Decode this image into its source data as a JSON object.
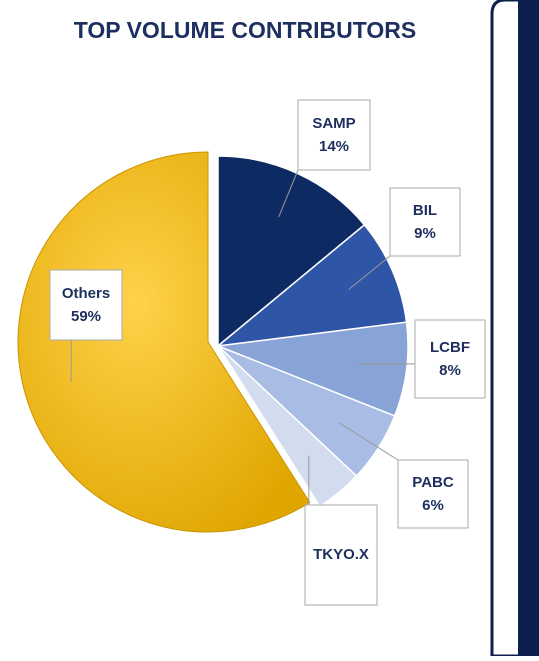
{
  "chart_data": {
    "type": "pie",
    "title": "TOP VOLUME CONTRIBUTORS",
    "categories": [
      "SAMP",
      "BIL",
      "LCBF",
      "PABC",
      "TKYO.X",
      "Others"
    ],
    "values": [
      14,
      9,
      8,
      6,
      4,
      59
    ],
    "value_labels": [
      "14%",
      "9%",
      "8%",
      "6%",
      null,
      "59%"
    ],
    "colors": [
      "#0d2a63",
      "#2f56a6",
      "#88a3d5",
      "#a9bde4",
      "#d3dcef",
      "#f5b800"
    ]
  }
}
